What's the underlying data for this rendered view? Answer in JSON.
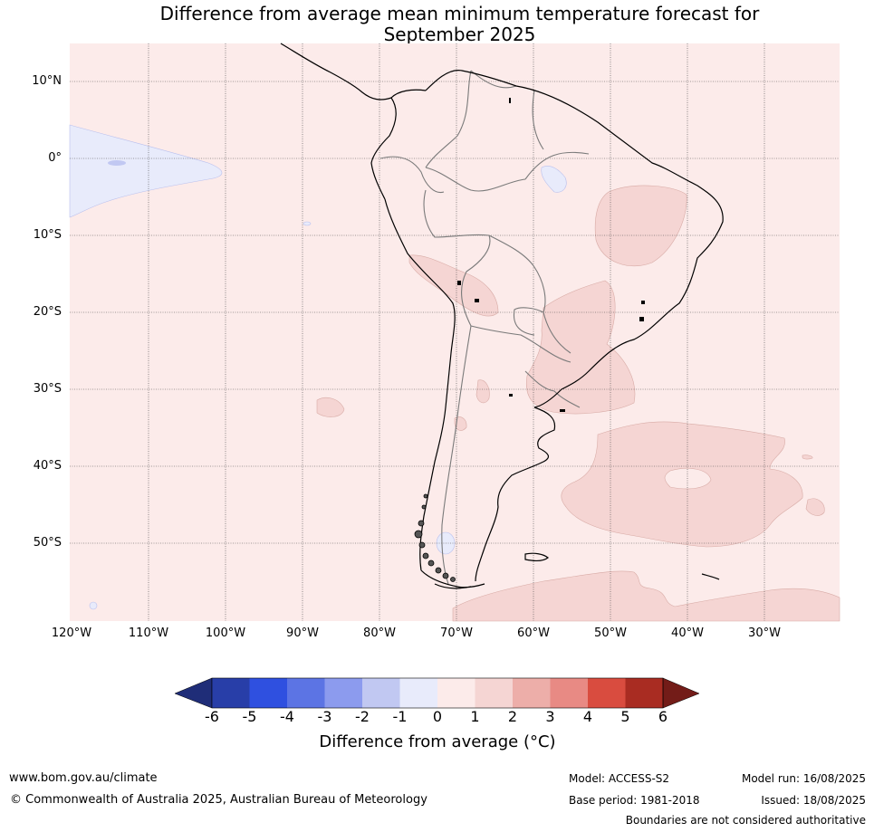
{
  "title": {
    "line1": "Difference from average mean minimum temperature forecast for",
    "line2": "September 2025"
  },
  "map": {
    "region": "South America",
    "lat_labels": [
      "10°N",
      "0°",
      "10°S",
      "20°S",
      "30°S",
      "40°S",
      "50°S"
    ],
    "lon_labels": [
      "120°W",
      "110°W",
      "100°W",
      "90°W",
      "80°W",
      "70°W",
      "60°W",
      "50°W",
      "40°W",
      "30°W"
    ],
    "gridlines": true,
    "background_color": "#fcebea"
  },
  "colorbar": {
    "ticks": [
      "-6",
      "-5",
      "-4",
      "-3",
      "-2",
      "-1",
      "0",
      "1",
      "2",
      "3",
      "4",
      "5",
      "6"
    ],
    "colors": [
      "#283ea8",
      "#2f50e0",
      "#5c74e4",
      "#8c9bee",
      "#c1c8f2",
      "#e8ebfb",
      "#fcebea",
      "#f5d5d3",
      "#edaea9",
      "#e88a84",
      "#d94c3f",
      "#a92c22"
    ],
    "under_color": "#1f2d78",
    "over_color": "#731c18",
    "label": "Difference from average (°C)"
  },
  "footer": {
    "website": "www.bom.gov.au/climate",
    "copyright": "© Commonwealth of Australia 2025, Australian Bureau of Meteorology",
    "model": "Model: ACCESS-S2",
    "base_period": "Base period: 1981-2018",
    "model_run": "Model run: 16/08/2025",
    "issued": "Issued: 18/08/2025",
    "disclaimer": "Boundaries are not considered authoritative"
  }
}
